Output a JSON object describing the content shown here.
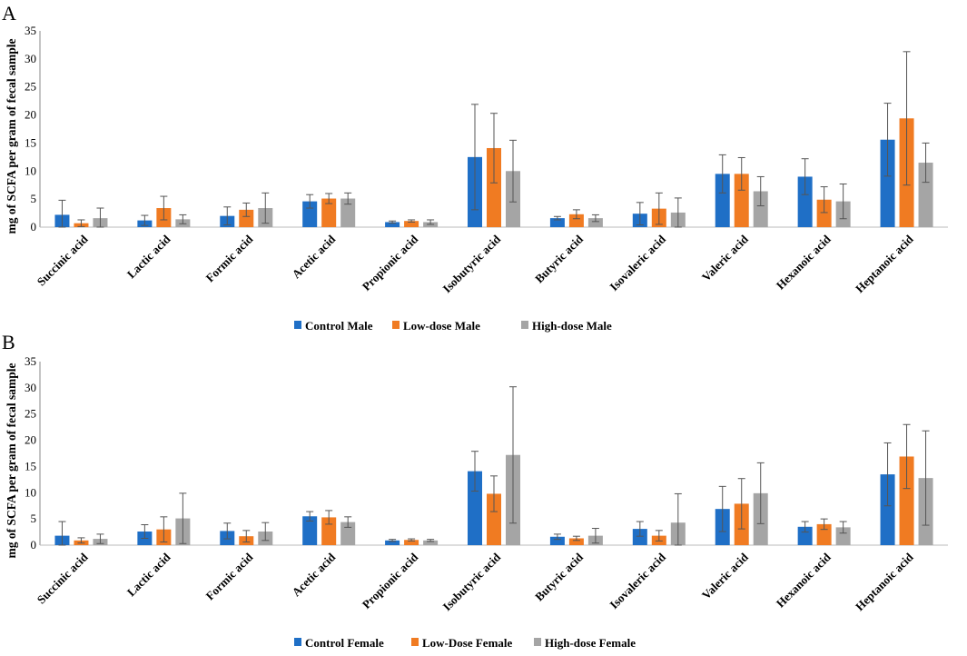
{
  "figure": {
    "panel_labels": [
      "A",
      "B"
    ]
  },
  "chart_data": [
    {
      "type": "bar",
      "panel": "A",
      "ylabel": "mg of SCFA per gram of fecal sample",
      "xlabel": "",
      "ylim": [
        0,
        35
      ],
      "yticks": [
        0,
        5,
        10,
        15,
        20,
        25,
        30,
        35
      ],
      "grid": false,
      "legend_position": "bottom",
      "categories": [
        "Succinic acid",
        "Lactic acid",
        "Formic acid",
        "Acetic acid",
        "Propionic acid",
        "Isobutyric acid",
        "Butyric acid",
        "Isovaleric acid",
        "Valeric acid",
        "Hexanoic acid",
        "Heptanoic acid"
      ],
      "series": [
        {
          "name": "Control Male",
          "color": "#1f6fc6",
          "values": [
            2.2,
            1.2,
            2.0,
            4.6,
            0.9,
            12.5,
            1.6,
            2.4,
            9.5,
            9.0,
            15.6
          ],
          "errors": [
            2.6,
            0.9,
            1.6,
            1.2,
            0.2,
            9.4,
            0.3,
            2.0,
            3.4,
            3.2,
            6.5
          ]
        },
        {
          "name": "Low-dose Male",
          "color": "#f07b22",
          "values": [
            0.7,
            3.4,
            3.1,
            5.1,
            1.1,
            14.1,
            2.3,
            3.3,
            9.5,
            4.9,
            19.4
          ],
          "errors": [
            0.6,
            2.1,
            1.2,
            0.9,
            0.2,
            6.2,
            0.8,
            2.8,
            2.9,
            2.3,
            11.9
          ]
        },
        {
          "name": "High-dose Male",
          "color": "#a5a5a5",
          "values": [
            1.6,
            1.4,
            3.4,
            5.1,
            0.9,
            10.0,
            1.6,
            2.6,
            6.4,
            4.6,
            11.5
          ],
          "errors": [
            1.8,
            0.8,
            2.7,
            1.0,
            0.4,
            5.5,
            0.6,
            2.6,
            2.6,
            3.1,
            3.5
          ]
        }
      ]
    },
    {
      "type": "bar",
      "panel": "B",
      "ylabel": "mg of SCFA per gram of fecal sample",
      "xlabel": "",
      "ylim": [
        0,
        35
      ],
      "yticks": [
        0,
        5,
        10,
        15,
        20,
        25,
        30,
        35
      ],
      "grid": false,
      "legend_position": "bottom",
      "categories": [
        "Succinic acid",
        "Lactic acid",
        "Formic acid",
        "Acetic acid",
        "Propionic acid",
        "Isobutyric acid",
        "Butyric acid",
        "Isovaleric acid",
        "Valeric acid",
        "Hexanoic acid",
        "Heptanoic acid"
      ],
      "series": [
        {
          "name": "Control Female",
          "color": "#1f6fc6",
          "values": [
            1.8,
            2.6,
            2.7,
            5.5,
            0.9,
            14.1,
            1.6,
            3.1,
            6.9,
            3.5,
            13.5
          ],
          "errors": [
            2.7,
            1.3,
            1.5,
            0.9,
            0.2,
            3.8,
            0.5,
            1.4,
            4.3,
            1.0,
            6.0
          ]
        },
        {
          "name": "Low-Dose Female",
          "color": "#f07b22",
          "values": [
            0.9,
            3.0,
            1.7,
            5.3,
            1.0,
            9.8,
            1.3,
            1.8,
            7.9,
            4.0,
            16.9
          ],
          "errors": [
            0.5,
            2.4,
            1.1,
            1.3,
            0.2,
            3.4,
            0.4,
            1.0,
            4.8,
            1.0,
            6.1
          ]
        },
        {
          "name": "High-dose Female",
          "color": "#a5a5a5",
          "values": [
            1.2,
            5.1,
            2.6,
            4.4,
            0.9,
            17.2,
            1.8,
            4.3,
            9.9,
            3.4,
            12.8
          ],
          "errors": [
            0.9,
            4.8,
            1.7,
            1.0,
            0.2,
            13.0,
            1.4,
            5.5,
            5.8,
            1.1,
            9.0
          ]
        }
      ]
    }
  ]
}
